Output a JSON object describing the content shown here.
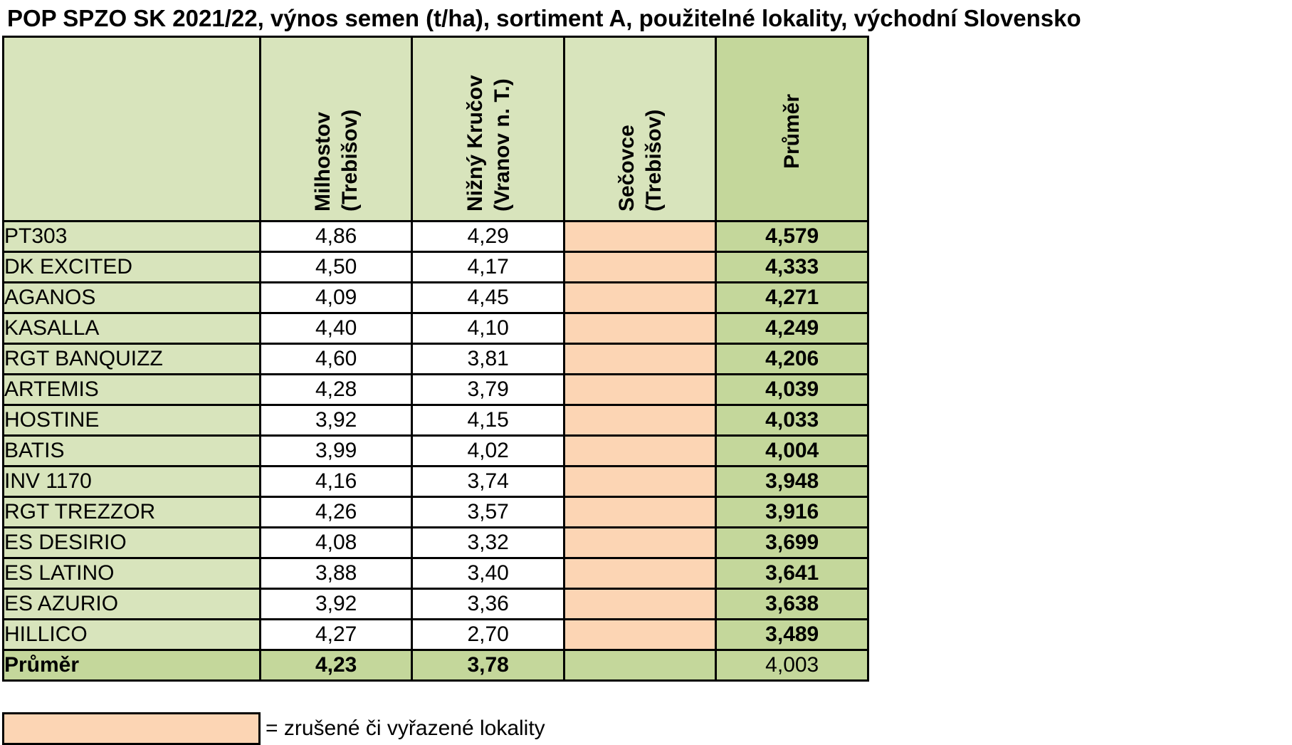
{
  "title": "POP SPZO SK 2021/22, výnos semen (t/ha), sortiment A, použitelné lokality, východní Slovensko",
  "columns": [
    {
      "name": "Milhostov",
      "sub": "(Trebišov)"
    },
    {
      "name": "Nižný Kručov",
      "sub": "(Vranov n. T.)"
    },
    {
      "name": "Sečovce",
      "sub": "(Trebišov)"
    },
    {
      "name": "Průměr",
      "sub": ""
    }
  ],
  "rows": [
    {
      "name": "PT303",
      "milhostov": "4,86",
      "nizny": "4,29",
      "secovce": "",
      "prumer": "4,579"
    },
    {
      "name": "DK EXCITED",
      "milhostov": "4,50",
      "nizny": "4,17",
      "secovce": "",
      "prumer": "4,333"
    },
    {
      "name": "AGANOS",
      "milhostov": "4,09",
      "nizny": "4,45",
      "secovce": "",
      "prumer": "4,271"
    },
    {
      "name": "KASALLA",
      "milhostov": "4,40",
      "nizny": "4,10",
      "secovce": "",
      "prumer": "4,249"
    },
    {
      "name": "RGT BANQUIZZ",
      "milhostov": "4,60",
      "nizny": "3,81",
      "secovce": "",
      "prumer": "4,206"
    },
    {
      "name": "ARTEMIS",
      "milhostov": "4,28",
      "nizny": "3,79",
      "secovce": "",
      "prumer": "4,039"
    },
    {
      "name": "HOSTINE",
      "milhostov": "3,92",
      "nizny": "4,15",
      "secovce": "",
      "prumer": "4,033"
    },
    {
      "name": "BATIS",
      "milhostov": "3,99",
      "nizny": "4,02",
      "secovce": "",
      "prumer": "4,004"
    },
    {
      "name": "INV 1170",
      "milhostov": "4,16",
      "nizny": "3,74",
      "secovce": "",
      "prumer": "3,948"
    },
    {
      "name": "RGT TREZZOR",
      "milhostov": "4,26",
      "nizny": "3,57",
      "secovce": "",
      "prumer": "3,916"
    },
    {
      "name": "ES DESIRIO",
      "milhostov": "4,08",
      "nizny": "3,32",
      "secovce": "",
      "prumer": "3,699"
    },
    {
      "name": "ES LATINO",
      "milhostov": "3,88",
      "nizny": "3,40",
      "secovce": "",
      "prumer": "3,641"
    },
    {
      "name": "ES AZURIO",
      "milhostov": "3,92",
      "nizny": "3,36",
      "secovce": "",
      "prumer": "3,638"
    },
    {
      "name": "HILLICO",
      "milhostov": "4,27",
      "nizny": "2,70",
      "secovce": "",
      "prumer": "3,489"
    }
  ],
  "total": {
    "name": "Průměr",
    "milhostov": "4,23",
    "nizny": "3,78",
    "secovce": "",
    "prumer": "4,003"
  },
  "legend": {
    "text": "= zrušené či vyřazené lokality",
    "color": "#fcd5b4"
  },
  "colors": {
    "name_bg": "#d8e4bc",
    "avg_bg": "#c4d79b",
    "cancel_bg": "#fcd5b4"
  },
  "chart_data": {
    "type": "table",
    "title": "POP SPZO SK 2021/22, výnos semen (t/ha), sortiment A, použitelné lokality, východní Slovensko",
    "columns": [
      "Milhostov (Trebišov)",
      "Nižný Kručov (Vranov n. T.)",
      "Sečovce (Trebišov)",
      "Průměr"
    ],
    "categories": [
      "PT303",
      "DK EXCITED",
      "AGANOS",
      "KASALLA",
      "RGT BANQUIZZ",
      "ARTEMIS",
      "HOSTINE",
      "BATIS",
      "INV 1170",
      "RGT TREZZOR",
      "ES DESIRIO",
      "ES LATINO",
      "ES AZURIO",
      "HILLICO",
      "Průměr"
    ],
    "series": [
      {
        "name": "Milhostov (Trebišov)",
        "values": [
          4.86,
          4.5,
          4.09,
          4.4,
          4.6,
          4.28,
          3.92,
          3.99,
          4.16,
          4.26,
          4.08,
          3.88,
          3.92,
          4.27,
          4.23
        ]
      },
      {
        "name": "Nižný Kručov (Vranov n. T.)",
        "values": [
          4.29,
          4.17,
          4.45,
          4.1,
          3.81,
          3.79,
          4.15,
          4.02,
          3.74,
          3.57,
          3.32,
          3.4,
          3.36,
          2.7,
          3.78
        ]
      },
      {
        "name": "Sečovce (Trebišov)",
        "values": [
          null,
          null,
          null,
          null,
          null,
          null,
          null,
          null,
          null,
          null,
          null,
          null,
          null,
          null,
          null
        ]
      },
      {
        "name": "Průměr",
        "values": [
          4.579,
          4.333,
          4.271,
          4.249,
          4.206,
          4.039,
          4.033,
          4.004,
          3.948,
          3.916,
          3.699,
          3.641,
          3.638,
          3.489,
          4.003
        ]
      }
    ]
  }
}
